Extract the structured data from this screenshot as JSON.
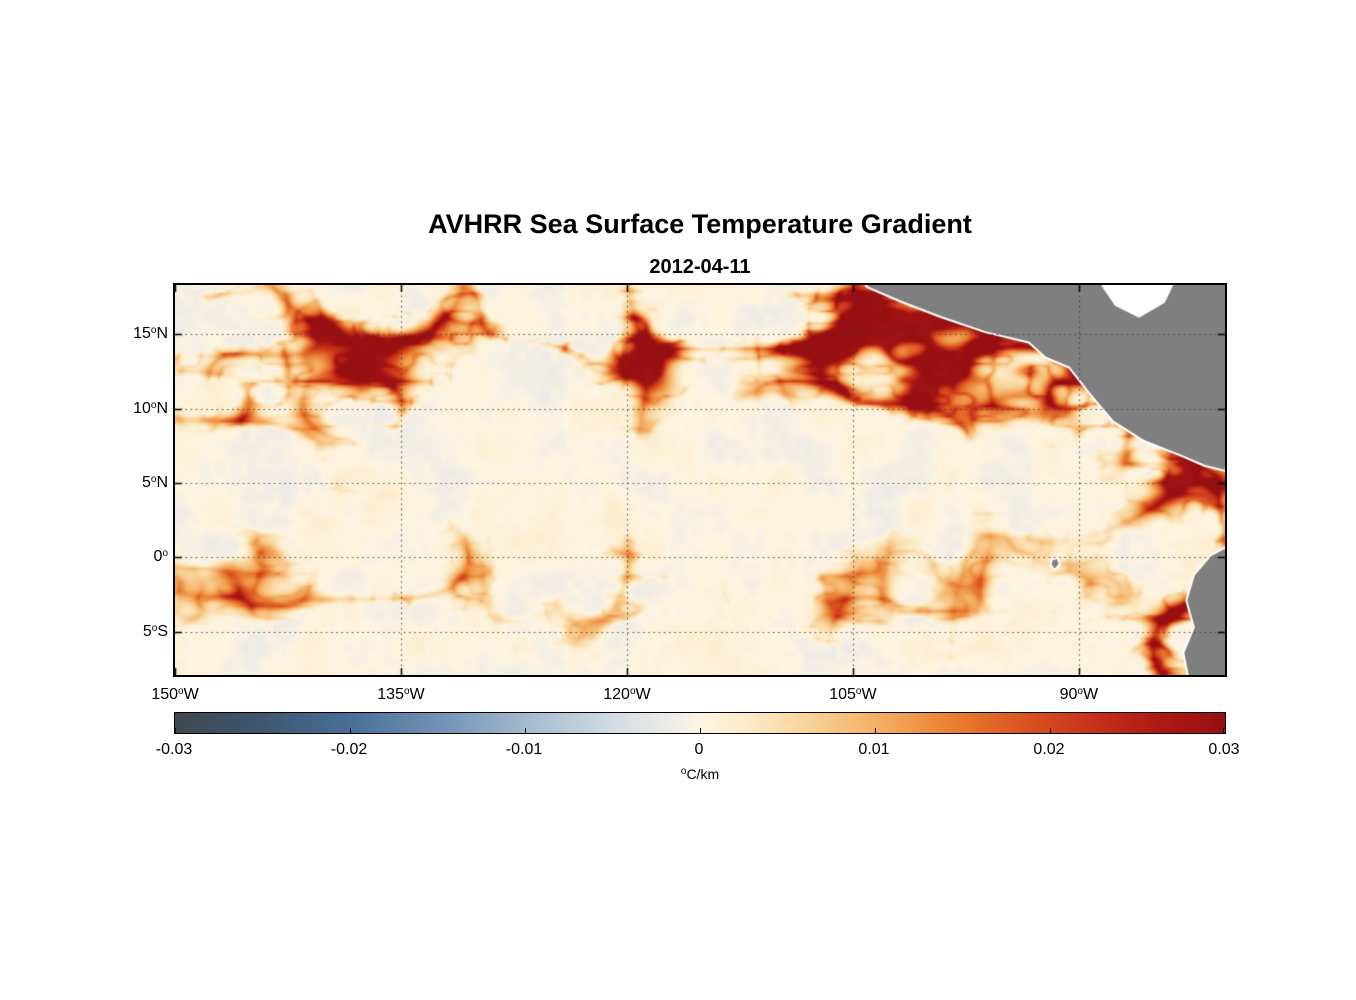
{
  "chart_data": {
    "type": "heatmap",
    "title": "AVHRR Sea Surface Temperature Gradient",
    "subtitle_date": "2012-04-11",
    "geo_extent": {
      "lon_min": -150.0,
      "lon_max": -80.3,
      "lat_min": -7.9,
      "lat_max": 18.3
    },
    "x_axis": {
      "ticks": [
        {
          "value": -150,
          "label": "150^oW"
        },
        {
          "value": -135,
          "label": "135^oW"
        },
        {
          "value": -120,
          "label": "120^oW"
        },
        {
          "value": -105,
          "label": "105^oW"
        },
        {
          "value": -90,
          "label": "90^oW"
        }
      ]
    },
    "y_axis": {
      "ticks": [
        {
          "value": 15,
          "label": "15^oN"
        },
        {
          "value": 10,
          "label": "10^oN"
        },
        {
          "value": 5,
          "label": "5^oN"
        },
        {
          "value": 0,
          "label": "0^o"
        },
        {
          "value": -5,
          "label": "5^oS"
        }
      ]
    },
    "grid": {
      "style": "dotted",
      "color": "rgba(70,60,45,0.85)"
    },
    "field": {
      "variable": "sea surface temperature gradient magnitude",
      "units": "degC/km",
      "value_range": [
        -0.03,
        0.03
      ],
      "background_values": "near 0 (cream/off-white with faint pale-blue and pale-orange mottling)",
      "filament_values": "0.01 to 0.03 (orange to dark red)",
      "pattern": "zonally elongated mesoscale frontal filaments; strongest along the 10-17N ITCZ band, along the Central American coast (Tehuantepec/Papagayo/Panama), along the equatorial front near 0-2N, and in the Peru coastal upwelling at the southeast edge",
      "texture_seed": 7,
      "palette_zero_color": "#fdf4e1"
    },
    "land": {
      "color": "#7f7f7f",
      "coast_halo_color": "#ffffff",
      "coast_polyline": [
        [
          -104.0,
          18.2
        ],
        [
          -99.0,
          16.2
        ],
        [
          -93.3,
          14.4
        ],
        [
          -90.5,
          12.7
        ],
        [
          -87.5,
          9.2
        ],
        [
          -83.2,
          6.8
        ],
        [
          -81.2,
          3.0
        ],
        [
          -81.0,
          -1.0
        ],
        [
          -82.3,
          -5.0
        ],
        [
          -82.5,
          -8.0
        ]
      ],
      "polygons": [
        {
          "name": "central-america",
          "points": [
            [
              -104.6,
              19.0
            ],
            [
              -104.0,
              18.2
            ],
            [
              -101.7,
              17.2
            ],
            [
              -99.1,
              16.2
            ],
            [
              -96.2,
              15.2
            ],
            [
              -93.3,
              14.5
            ],
            [
              -92.2,
              13.5
            ],
            [
              -90.6,
              12.8
            ],
            [
              -89.2,
              11.0
            ],
            [
              -87.7,
              9.2
            ],
            [
              -85.7,
              7.9
            ],
            [
              -83.2,
              6.9
            ],
            [
              -81.6,
              6.2
            ],
            [
              -79.9,
              5.8
            ],
            [
              -79.9,
              19.0
            ]
          ]
        },
        {
          "name": "south-america",
          "points": [
            [
              -79.9,
              0.8
            ],
            [
              -81.2,
              0.1
            ],
            [
              -82.3,
              -1.2
            ],
            [
              -82.8,
              -2.9
            ],
            [
              -82.3,
              -4.7
            ],
            [
              -83.0,
              -6.4
            ],
            [
              -82.6,
              -8.5
            ],
            [
              -79.9,
              -8.5
            ]
          ]
        },
        {
          "name": "galapagos-island",
          "points": [
            [
              -91.75,
              -0.2
            ],
            [
              -91.45,
              -0.1
            ],
            [
              -91.35,
              -0.45
            ],
            [
              -91.6,
              -0.75
            ],
            [
              -91.8,
              -0.5
            ]
          ]
        }
      ],
      "no_data_regions": [
        {
          "name": "caribbean-gap",
          "color": "#ffffff",
          "points": [
            [
              -89.0,
              19.0
            ],
            [
              -87.6,
              16.9
            ],
            [
              -86.0,
              16.1
            ],
            [
              -84.3,
              17.1
            ],
            [
              -83.4,
              19.0
            ]
          ]
        }
      ]
    },
    "colorbar": {
      "units_label": "^oC/km",
      "min": -0.03,
      "max": 0.03,
      "ticks": [
        {
          "value": -0.03,
          "label": "-0.03"
        },
        {
          "value": -0.02,
          "label": "-0.02"
        },
        {
          "value": -0.01,
          "label": "-0.01"
        },
        {
          "value": 0,
          "label": "0"
        },
        {
          "value": 0.01,
          "label": "0.01"
        },
        {
          "value": 0.02,
          "label": "0.02"
        },
        {
          "value": 0.03,
          "label": "0.03"
        }
      ],
      "gradient_stops": [
        [
          0.0,
          "#3f4850"
        ],
        [
          0.08,
          "#3e566f"
        ],
        [
          0.17,
          "#4a7099"
        ],
        [
          0.26,
          "#7795b7"
        ],
        [
          0.34,
          "#a6bcd0"
        ],
        [
          0.42,
          "#d3dde5"
        ],
        [
          0.47,
          "#edebe7"
        ],
        [
          0.5,
          "#fdf4e1"
        ],
        [
          0.54,
          "#fceccb"
        ],
        [
          0.6,
          "#f9d49c"
        ],
        [
          0.67,
          "#f4ae62"
        ],
        [
          0.74,
          "#ea7f33"
        ],
        [
          0.81,
          "#da5220"
        ],
        [
          0.88,
          "#c42f1a"
        ],
        [
          0.94,
          "#ad1814"
        ],
        [
          1.0,
          "#960f12"
        ]
      ]
    }
  }
}
